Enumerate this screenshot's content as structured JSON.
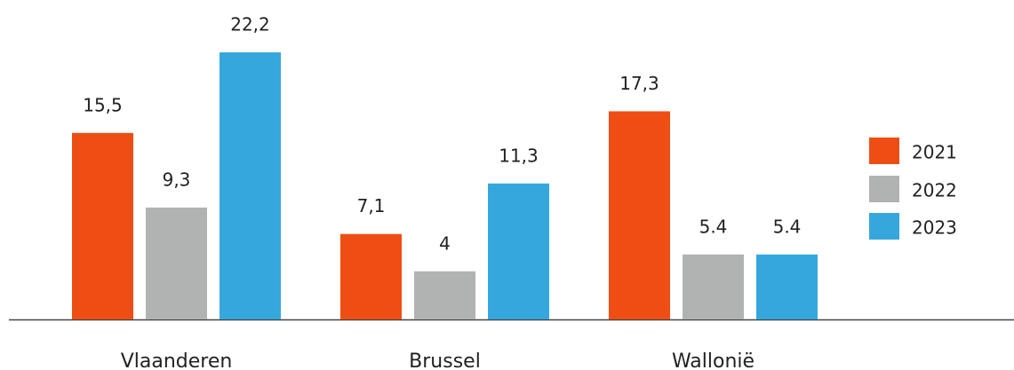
{
  "chart_data": {
    "type": "bar",
    "categories": [
      "Vlaanderen",
      "Brussel",
      "Wallonië"
    ],
    "series": [
      {
        "name": "2021",
        "color": "#ee4e14",
        "values": [
          15.5,
          7.1,
          17.3
        ],
        "value_labels": [
          "15,5",
          "7,1",
          "17,3"
        ]
      },
      {
        "name": "2022",
        "color": "#b1b3b3",
        "values": [
          9.3,
          4,
          5.4
        ],
        "value_labels": [
          "9,3",
          "4",
          "5.4"
        ]
      },
      {
        "name": "2023",
        "color": "#35a7dd",
        "values": [
          22.2,
          11.3,
          5.4
        ],
        "value_labels": [
          "22,2",
          "11,3",
          "5.4"
        ]
      }
    ],
    "legend": "right"
  }
}
